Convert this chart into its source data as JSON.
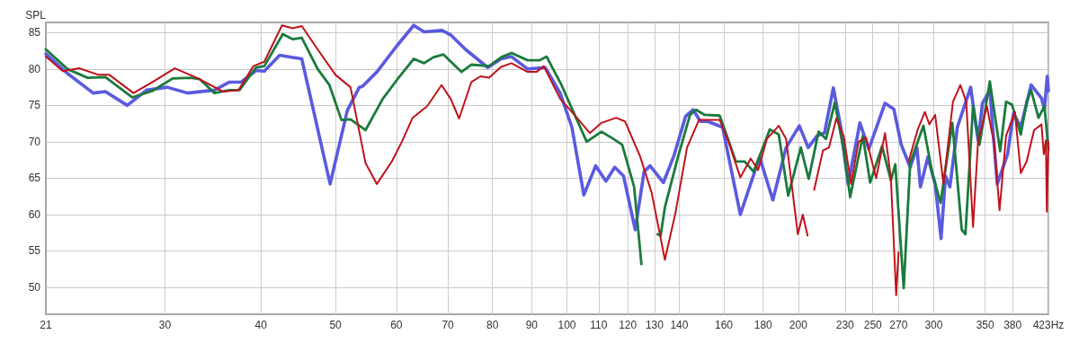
{
  "chart_data": {
    "type": "line",
    "ylabel": "SPL",
    "log": "x",
    "grid": true,
    "marker": "none",
    "line_style": "solid",
    "xlim": [
      21,
      423
    ],
    "ylim": [
      46.3,
      86.4
    ],
    "xticks": [
      21,
      30,
      40,
      50,
      60,
      70,
      80,
      90,
      100,
      110,
      120,
      130,
      140,
      160,
      180,
      200,
      230,
      250,
      270,
      300,
      350,
      380,
      {
        "value": 423,
        "label": "423Hz"
      }
    ],
    "yticks": [
      50,
      55,
      60,
      65,
      70,
      75,
      80,
      85
    ],
    "series": [
      {
        "color": "#5a5ae0",
        "x": [
          21,
          22.4,
          24.2,
          25.1,
          26.8,
          28.4,
          30.2,
          32.1,
          34.8,
          36.4,
          37.7,
          39.4,
          40.4,
          42.3,
          44,
          45.2,
          47,
          49.2,
          51.8,
          53.7,
          54.2,
          56.6,
          60,
          63.2,
          65.2,
          68.8,
          70.6,
          73.8,
          78.9,
          82.1,
          84.7,
          88.9,
          93.7,
          98,
          101.5,
          105.2,
          109,
          112.4,
          115.4,
          118.5,
          122.7,
          126,
          128.3,
          133.5,
          137.8,
          142.7,
          145.9,
          149.2,
          152.5,
          159.4,
          168.1,
          178.1,
          185.3,
          192.8,
          200.6,
          206,
          211.5,
          216.3,
          222.1,
          227.1,
          232.2,
          240.5,
          247,
          259.3,
          266.2,
          272.2,
          279.6,
          285.3,
          288.3,
          294.8,
          301.3,
          306.7,
          310.8,
          314.9,
          322,
          335.1,
          342.6,
          347.2,
          354.9,
          362.9,
          374.3,
          381,
          389.4,
          401.6,
          414.3,
          418,
          421.5,
          423
        ],
        "values": [
          82.1,
          79.4,
          76.7,
          76.9,
          75,
          77.1,
          77.5,
          76.7,
          77.1,
          78.2,
          78.2,
          79.8,
          79.7,
          81.9,
          81.6,
          81.4,
          73.5,
          64.2,
          74.3,
          77.5,
          77.6,
          79.6,
          83.1,
          86,
          85.1,
          85.3,
          84.7,
          82.7,
          80.2,
          81.4,
          81.7,
          80,
          80.2,
          76.7,
          72,
          62.7,
          66.7,
          64.6,
          66.5,
          65.3,
          57.9,
          65.9,
          66.7,
          64.4,
          68.1,
          73.5,
          74.4,
          72.8,
          72.8,
          72,
          60,
          67.9,
          62,
          69.2,
          72.2,
          69.2,
          70.8,
          71.2,
          77.4,
          72,
          64.2,
          72.6,
          69,
          75.3,
          74.5,
          69.6,
          66.5,
          69.2,
          63.8,
          67.9,
          64.2,
          56.7,
          65.3,
          63.8,
          72,
          77.5,
          70.2,
          75.3,
          77.1,
          64.2,
          68.3,
          73.9,
          72,
          77.8,
          76,
          74.5,
          79,
          77
        ]
      },
      {
        "color": "#1a7a3c",
        "x": [
          21,
          22.4,
          23.8,
          25.1,
          27.2,
          28.9,
          30.7,
          32.4,
          33.3,
          34.8,
          36.4,
          37.5,
          39.4,
          40.4,
          42.7,
          44,
          45.2,
          47.4,
          49.1,
          50.9,
          52.3,
          54.7,
          57.6,
          60.2,
          63.2,
          65.2,
          67,
          69.1,
          72.9,
          75.1,
          79.2,
          82.1,
          84.7,
          88.9,
          92.1,
          94.1,
          98.4,
          100.6,
          106.1,
          110.9,
          114.9,
          118,
          122.3,
          125,
          126.6,
          128.3,
          131.2,
          132.4,
          134.1,
          139.6,
          144.6,
          147.2,
          151.1,
          158,
          161.5,
          165.8,
          170.3,
          174.9,
          183.6,
          188.6,
          194,
          201.5,
          206.3,
          212.5,
          217.3,
          223.1,
          229.1,
          233.6,
          242.6,
          248,
          257,
          263.9,
          267.4,
          274.2,
          279.6,
          290.9,
          298.7,
          306.2,
          317.2,
          326.3,
          329.9,
          337.5,
          344.1,
          354.9,
          366.1,
          372.6,
          379.3,
          389.4,
          396.3,
          401.6,
          410.6,
          418,
          423
        ],
        "values": [
          82.7,
          80,
          78.8,
          78.9,
          76.1,
          77,
          78.7,
          78.8,
          78.6,
          76.7,
          77.1,
          77.1,
          80.2,
          80.4,
          84.8,
          84.1,
          84.3,
          80,
          77.8,
          73,
          73.1,
          71.6,
          75.9,
          78.6,
          81.4,
          80.8,
          81.6,
          82,
          79.6,
          80.6,
          80.4,
          81.6,
          82.2,
          81.2,
          81.2,
          81.7,
          77.8,
          75.5,
          70,
          71.4,
          70.4,
          69.6,
          63.8,
          53.2,
          null,
          null,
          57.3,
          57.1,
          61,
          68.1,
          73.7,
          74.4,
          73.7,
          73.6,
          70.8,
          67.3,
          67.3,
          65.9,
          71.7,
          71,
          62.6,
          69.2,
          64.9,
          71.4,
          70.4,
          75.4,
          68.8,
          62.4,
          70.8,
          64.4,
          69.4,
          64.7,
          66.9,
          49.9,
          67.1,
          72.2,
          65.7,
          61.6,
          72.6,
          57.9,
          57.3,
          74.9,
          69.6,
          78.3,
          68.7,
          75.5,
          75.1,
          71,
          75.5,
          77.1,
          73.3,
          74.9,
          69
        ]
      },
      {
        "color": "#c0121a",
        "x": [
          21,
          22.1,
          23.2,
          24.6,
          25.4,
          27.3,
          28.9,
          30.9,
          33,
          35.7,
          37.4,
          39.1,
          40.4,
          42.6,
          44,
          45.2,
          47.4,
          50,
          52.3,
          54.7,
          56.6,
          59.2,
          61,
          63,
          65.8,
          68.7,
          70.6,
          72.4,
          75.1,
          77.2,
          79.2,
          82.1,
          84.7,
          88.9,
          91.3,
          93.3,
          98,
          101.5,
          107.1,
          110.9,
          115.9,
          119,
          124.4,
          128.9,
          134.1,
          138.4,
          143.3,
          148.5,
          158,
          162.3,
          168.1,
          173.4,
          177.3,
          182,
          188.6,
          192.8,
          199.7,
          202.7,
          205.6,
          207.5,
          209.7,
          215.3,
          219.2,
          224.1,
          229.1,
          234.2,
          239.5,
          244.8,
          252.5,
          259.3,
          263.9,
          268.1,
          270,
          273.4,
          278.3,
          285.8,
          292.2,
          296.1,
          301.3,
          308.9,
          317.8,
          324.9,
          330.7,
          337.5,
          342.6,
          351.8,
          359.7,
          365.4,
          372.6,
          382.6,
          389.4,
          396.3,
          405.2,
          414.3,
          417.2,
          419.8,
          421,
          423
        ],
        "values": [
          81.7,
          79.7,
          80.1,
          79.2,
          79.2,
          76.7,
          78.2,
          80.1,
          78.8,
          76.9,
          77.1,
          80.4,
          81,
          86,
          85.6,
          85.9,
          82.7,
          79.2,
          77.5,
          67.1,
          64.2,
          67.3,
          70,
          73.3,
          74.9,
          77.8,
          75.9,
          73.2,
          78.2,
          79,
          78.8,
          80.3,
          80.8,
          79.6,
          79.6,
          80.4,
          75.9,
          74.1,
          71.2,
          72.6,
          73.3,
          72.8,
          68.1,
          63,
          53.8,
          60.2,
          69.2,
          73,
          73,
          70,
          65.1,
          67.7,
          66.1,
          70.4,
          72.2,
          70.4,
          57.3,
          60,
          57.1,
          null,
          63.4,
          68.8,
          69.2,
          73.2,
          70.8,
          64.2,
          70,
          70.6,
          65,
          71.2,
          65,
          48.9,
          54.8,
          null,
          67.3,
          71.6,
          74.1,
          72.4,
          73.7,
          64.2,
          75.5,
          77.8,
          75.5,
          58.3,
          70,
          74.9,
          69.6,
          60.6,
          70.8,
          74.1,
          65.7,
          67.3,
          71.6,
          72.4,
          68.3,
          70.2,
          60.4,
          70
        ]
      }
    ]
  }
}
